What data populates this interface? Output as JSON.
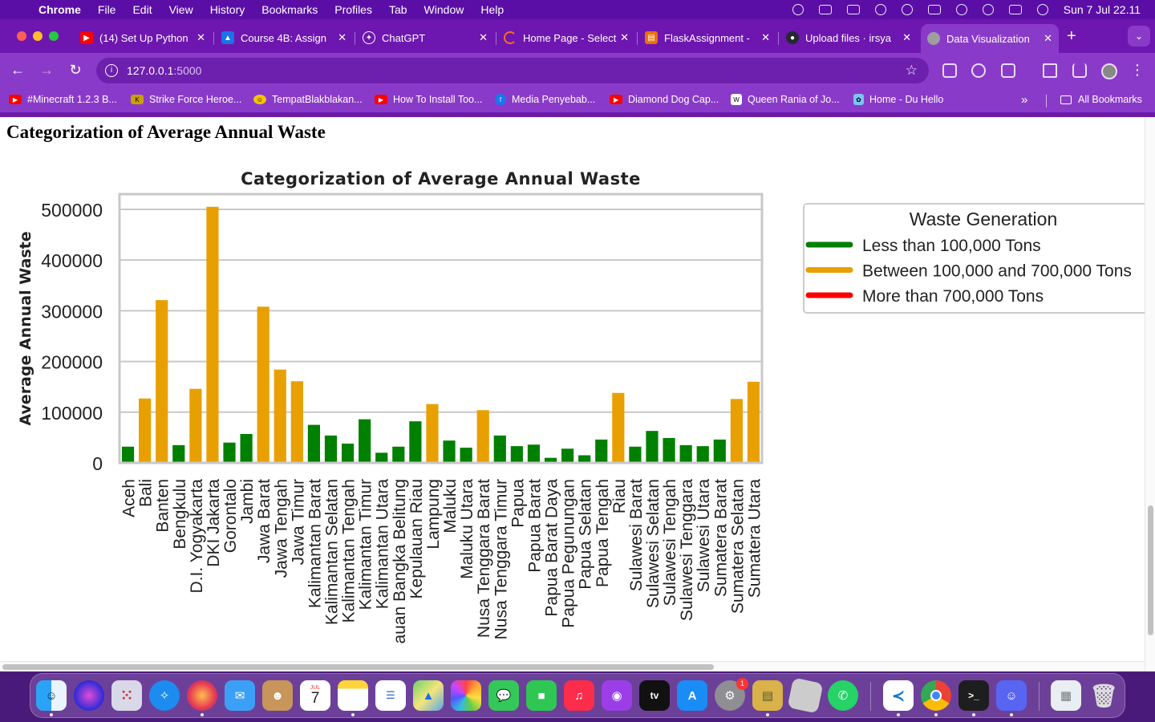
{
  "menubar": {
    "app_name": "Chrome",
    "items": [
      "File",
      "Edit",
      "View",
      "History",
      "Bookmarks",
      "Profiles",
      "Tab",
      "Window",
      "Help"
    ],
    "clock": "Sun 7 Jul  22.11"
  },
  "tabs": [
    {
      "title": "(14) Set Up Python",
      "favicon_color": "#ff0000",
      "active": false
    },
    {
      "title": "Course 4B: Assign",
      "favicon_color": "#1a73e8",
      "active": false
    },
    {
      "title": "ChatGPT",
      "favicon_color": "#202123",
      "active": false
    },
    {
      "title": "Home Page - Select",
      "favicon_color": "#f37021",
      "active": false
    },
    {
      "title": "FlaskAssignment -",
      "favicon_color": "#e8710a",
      "active": false
    },
    {
      "title": "Upload files · irsya",
      "favicon_color": "#24292f",
      "active": false
    },
    {
      "title": "Data Visualization",
      "favicon_color": "#9e9e9e",
      "active": true
    }
  ],
  "toolbar": {
    "url_host": "127.0.0.1",
    "url_port": ":5000"
  },
  "bookmarks": {
    "items": [
      {
        "label": "#Minecraft 1.2.3 B...",
        "color": "#ff0000"
      },
      {
        "label": "Strike Force Heroe...",
        "color": "#c9a000"
      },
      {
        "label": "TempatBlakblakan...",
        "color": "#f5c400"
      },
      {
        "label": "How To Install Too...",
        "color": "#ff0000"
      },
      {
        "label": "Media Penyebab...",
        "color": "#1877f2"
      },
      {
        "label": "Diamond Dog Cap...",
        "color": "#ff0000"
      },
      {
        "label": "Queen Rania of Jo...",
        "color": "#ffffff"
      },
      {
        "label": "Home - Du Hello",
        "color": "#7cc4f5"
      }
    ],
    "more": "»",
    "all_label": "All Bookmarks"
  },
  "page": {
    "heading": "Categorization of Average Annual Waste"
  },
  "chart_data": {
    "type": "bar",
    "title": "Categorization of Average Annual Waste",
    "xlabel": "",
    "ylabel": "Average Annual Waste",
    "ylim": [
      0,
      530000
    ],
    "yticks": [
      0,
      100000,
      200000,
      300000,
      400000,
      500000
    ],
    "grid": "horizontal",
    "legend_position": "right",
    "categories": [
      "Aceh",
      "Bali",
      "Banten",
      "Bengkulu",
      "D.I. Yogyakarta",
      "DKI Jakarta",
      "Gorontalo",
      "Jambi",
      "Jawa Barat",
      "Jawa Tengah",
      "Jawa Timur",
      "Kalimantan Barat",
      "Kalimantan Selatan",
      "Kalimantan Tengah",
      "Kalimantan Timur",
      "Kalimantan Utara",
      "auan Bangka Belitung",
      "Kepulauan Riau",
      "Lampung",
      "Maluku",
      "Maluku Utara",
      "Nusa Tenggara Barat",
      "Nusa Tenggara Timur",
      "Papua",
      "Papua Barat",
      "Papua Barat Daya",
      "Papua Pegunungan",
      "Papua Selatan",
      "Papua Tengah",
      "Riau",
      "Sulawesi Barat",
      "Sulawesi Selatan",
      "Sulawesi Tengah",
      "Sulawesi Tenggara",
      "Sulawesi Utara",
      "Sumatera Barat",
      "Sumatera Selatan",
      "Sumatera Utara"
    ],
    "values": [
      32000,
      127000,
      321000,
      35000,
      146000,
      505000,
      40000,
      57000,
      308000,
      184000,
      161000,
      75000,
      54000,
      38000,
      86000,
      20000,
      32000,
      82000,
      116000,
      44000,
      30000,
      104000,
      54000,
      33000,
      36000,
      10000,
      28000,
      15000,
      46000,
      138000,
      32000,
      63000,
      49000,
      35000,
      33000,
      46000,
      126000,
      160000
    ],
    "thresholds": [
      100000,
      700000
    ],
    "colors": {
      "low": "#008000",
      "mid": "#e8a000",
      "high": "#ff0000"
    },
    "legend": {
      "title": "Waste Generation",
      "entries": [
        {
          "label": "Less than 100,000 Tons",
          "color": "#008000"
        },
        {
          "label": "Between 100,000 and 700,000 Tons",
          "color": "#e8a000"
        },
        {
          "label": "More than 700,000 Tons",
          "color": "#ff0000"
        }
      ]
    }
  },
  "dock": {
    "calendar_month": "JUL",
    "calendar_day": "7",
    "settings_badge": "1"
  }
}
